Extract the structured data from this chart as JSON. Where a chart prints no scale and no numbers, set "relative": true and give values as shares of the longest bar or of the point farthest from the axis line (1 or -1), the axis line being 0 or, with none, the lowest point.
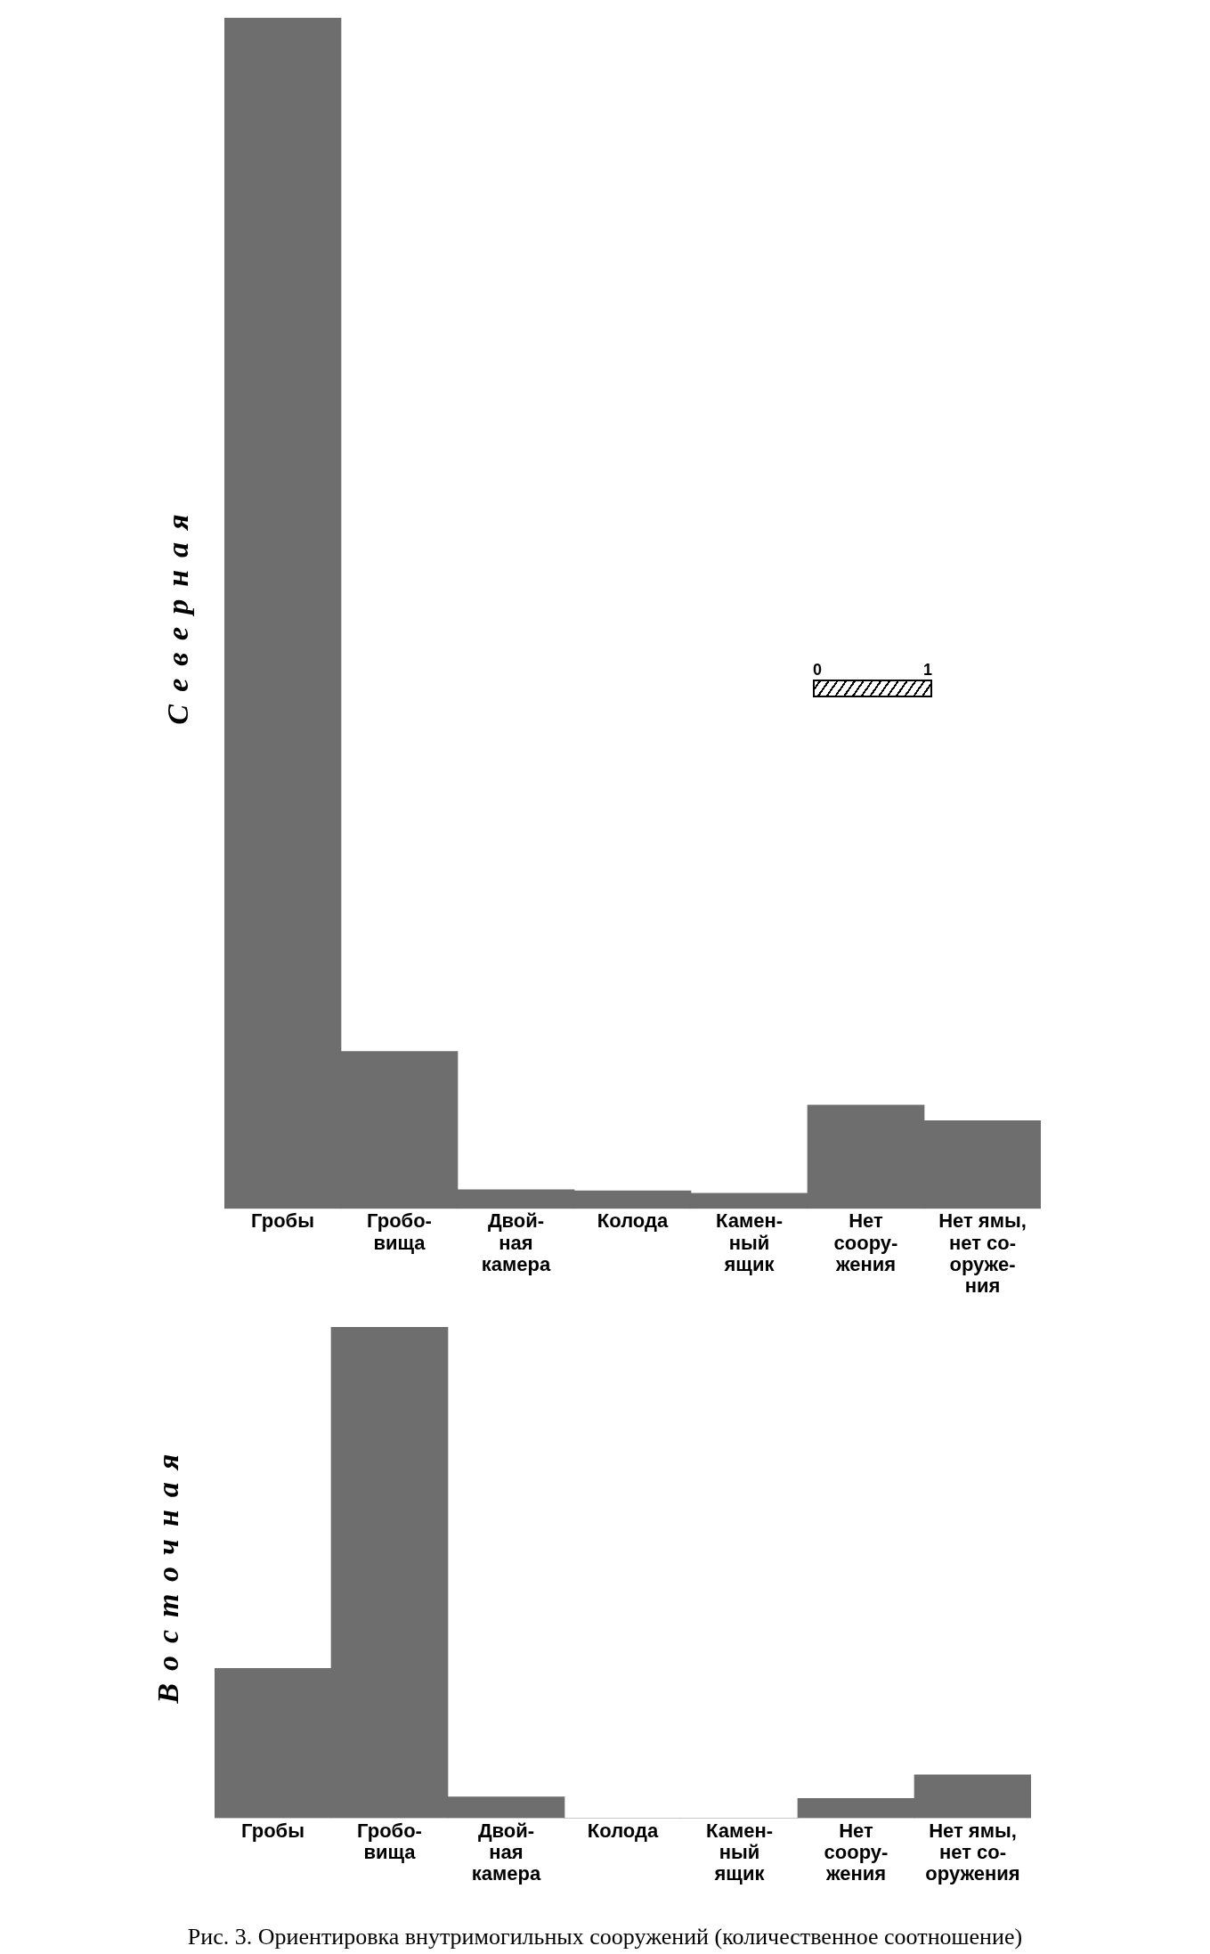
{
  "chart_data": [
    {
      "type": "bar",
      "relative": true,
      "ylabel": "Северная",
      "grid": false,
      "legend": false,
      "categories": [
        "Гробы",
        "Гробо-\nвища",
        "Двой-\nная\nкамера",
        "Колода",
        "Камен-\nный\nящик",
        "Нет\nсоору-\nжения",
        "Нет ямы,\nнет со-\nоруже-\nния"
      ],
      "values": [
        1,
        0.132,
        0.016,
        0.015,
        0.013,
        0.087,
        0.074
      ],
      "color": "#6e6e6e",
      "annotations": [
        "0",
        "1"
      ]
    },
    {
      "type": "bar",
      "relative": true,
      "ylabel": "Восточная",
      "grid": false,
      "legend": false,
      "categories": [
        "Гробы",
        "Гробо-\nвища",
        "Двой-\nная\nкамера",
        "Колода",
        "Камен-\nный\nящик",
        "Нет\nсоору-\nжения",
        "Нет ямы,\nнет со-\nоружения"
      ],
      "values": [
        0.305,
        1,
        0.043,
        0,
        0,
        0.04,
        0.088
      ],
      "color": "#6e6e6e",
      "annotations": [
        "Рис. 3. Ориентировка внутримогильных сооружений (количественное соотношение)"
      ]
    }
  ]
}
